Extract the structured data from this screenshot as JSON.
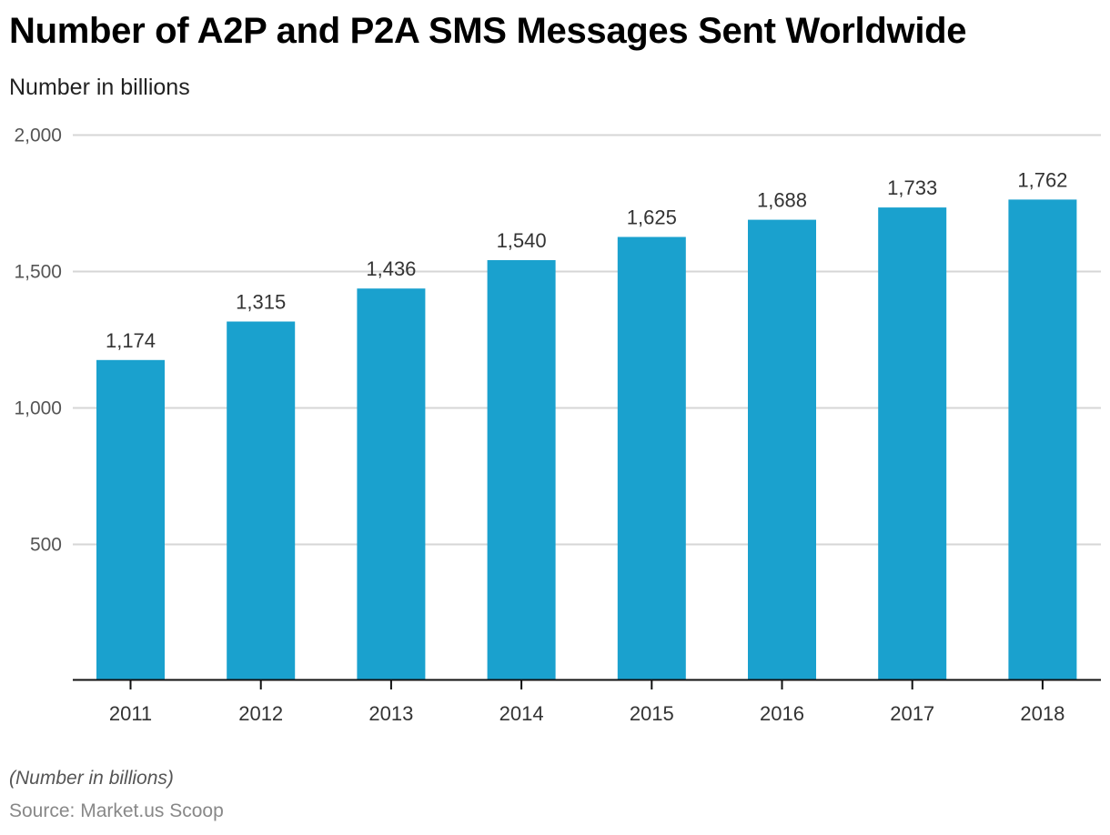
{
  "chart_data": {
    "type": "bar",
    "title": "Number of A2P and P2A SMS Messages Sent Worldwide",
    "subtitle": "Number in billions",
    "xlabel": "",
    "ylabel": "",
    "categories": [
      "2011",
      "2012",
      "2013",
      "2014",
      "2015",
      "2016",
      "2017",
      "2018"
    ],
    "values": [
      1174,
      1315,
      1436,
      1540,
      1625,
      1688,
      1733,
      1762
    ],
    "data_labels": [
      "1,174",
      "1,315",
      "1,436",
      "1,540",
      "1,625",
      "1,688",
      "1,733",
      "1,762"
    ],
    "ylim": [
      0,
      2000
    ],
    "yticks": [
      500,
      1000,
      1500,
      2000
    ],
    "ytick_labels": [
      "500",
      "1,000",
      "1,500",
      "2,000"
    ],
    "grid": true,
    "bar_color": "#1aa1ce",
    "note": "(Number in billions)",
    "source": "Source: Market.us Scoop"
  }
}
